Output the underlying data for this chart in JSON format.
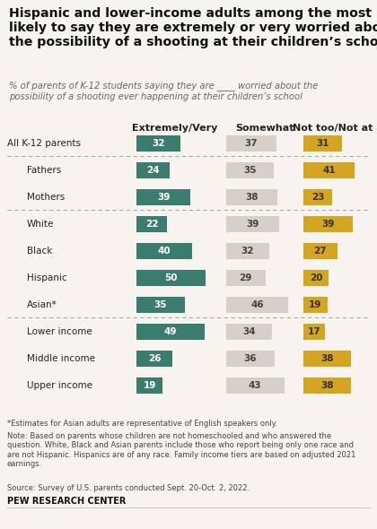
{
  "title": "Hispanic and lower-income adults among the most\nlikely to say they are extremely or very worried about\nthe possibility of a shooting at their children’s school",
  "subtitle": "% of parents of K-12 students saying they are ____ worried about the\npossibility of a shooting ever happening at their children’s school",
  "col_headers": [
    "Extremely/Very",
    "Somewhat",
    "Not too/Not at all"
  ],
  "categories": [
    "All K-12 parents",
    "Fathers",
    "Mothers",
    "White",
    "Black",
    "Hispanic",
    "Asian*",
    "Lower income",
    "Middle income",
    "Upper income"
  ],
  "indented": [
    false,
    true,
    true,
    true,
    true,
    true,
    true,
    true,
    true,
    true
  ],
  "extremely_very": [
    32,
    24,
    39,
    22,
    40,
    50,
    35,
    49,
    26,
    19
  ],
  "somewhat": [
    37,
    35,
    38,
    39,
    32,
    29,
    46,
    34,
    36,
    43
  ],
  "not_too": [
    31,
    41,
    23,
    39,
    27,
    20,
    19,
    17,
    38,
    38
  ],
  "color_green": "#3a7d6e",
  "color_tan": "#d6d0c8",
  "color_gold": "#d4a520",
  "separator_after": [
    0,
    2,
    6
  ],
  "footnote1": "*Estimates for Asian adults are representative of English speakers only.",
  "footnote2": "Note: Based on parents whose children are not homeschooled and who answered the\nquestion. White, Black and Asian parents include those who report being only one race and\nare not Hispanic. Hispanics are of any race. Family income tiers are based on adjusted 2021\nearnings.",
  "footnote3": "Source: Survey of U.S. parents conducted Sept. 20-Oct. 2, 2022.",
  "source_label": "PEW RESEARCH CENTER",
  "background_color": "#f7f4f0"
}
